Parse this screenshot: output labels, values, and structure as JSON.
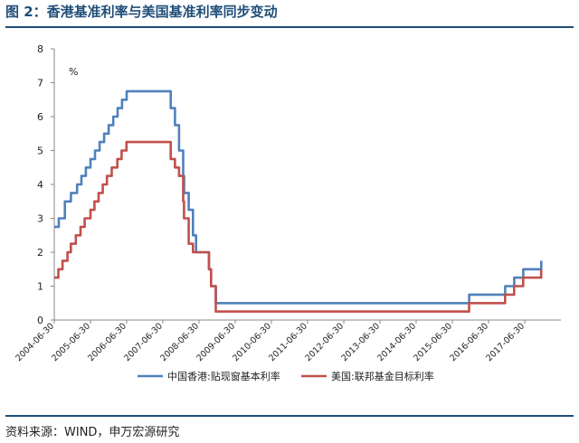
{
  "figure": {
    "title": "图 2：香港基准利率与美国基准利率同步变动",
    "source": "资料来源：WIND，申万宏源研究"
  },
  "chart_data": {
    "type": "line",
    "unit_label": "%",
    "ylim": [
      0,
      8
    ],
    "yticks": [
      0,
      1,
      2,
      3,
      4,
      5,
      6,
      7,
      8
    ],
    "xlim": [
      "2004-06-30",
      "2018-06-30"
    ],
    "xticks": [
      "2004-06-30",
      "2005-06-30",
      "2006-06-30",
      "2007-06-30",
      "2008-06-30",
      "2009-06-30",
      "2010-06-30",
      "2011-06-30",
      "2012-06-30",
      "2013-06-30",
      "2014-06-30",
      "2015-06-30",
      "2016-06-30",
      "2017-06-30"
    ],
    "grid": false,
    "legend_position": "bottom",
    "series": [
      {
        "name": "中国香港:贴现窗基本利率",
        "color": "#4f81bd",
        "points": [
          [
            "2004-06-30",
            2.75
          ],
          [
            "2004-08-15",
            3.0
          ],
          [
            "2004-10-15",
            3.5
          ],
          [
            "2004-12-15",
            3.75
          ],
          [
            "2005-02-15",
            4.0
          ],
          [
            "2005-03-31",
            4.25
          ],
          [
            "2005-05-15",
            4.5
          ],
          [
            "2005-06-30",
            4.75
          ],
          [
            "2005-08-15",
            5.0
          ],
          [
            "2005-09-30",
            5.25
          ],
          [
            "2005-11-15",
            5.5
          ],
          [
            "2005-12-31",
            5.75
          ],
          [
            "2006-02-15",
            6.0
          ],
          [
            "2006-03-31",
            6.25
          ],
          [
            "2006-05-15",
            6.5
          ],
          [
            "2006-06-30",
            6.75
          ],
          [
            "2007-09-18",
            6.25
          ],
          [
            "2007-10-31",
            5.75
          ],
          [
            "2007-12-11",
            5.0
          ],
          [
            "2008-01-22",
            4.25
          ],
          [
            "2008-01-31",
            3.75
          ],
          [
            "2008-03-18",
            3.25
          ],
          [
            "2008-04-30",
            2.5
          ],
          [
            "2008-05-31",
            2.0
          ],
          [
            "2008-10-08",
            1.5
          ],
          [
            "2008-10-29",
            1.0
          ],
          [
            "2008-12-17",
            0.5
          ],
          [
            "2015-12-17",
            0.75
          ],
          [
            "2016-12-15",
            1.0
          ],
          [
            "2017-03-16",
            1.25
          ],
          [
            "2017-06-15",
            1.5
          ],
          [
            "2017-12-14",
            1.75
          ]
        ]
      },
      {
        "name": "美国:联邦基金目标利率",
        "color": "#c0504d",
        "points": [
          [
            "2004-06-30",
            1.25
          ],
          [
            "2004-08-10",
            1.5
          ],
          [
            "2004-09-21",
            1.75
          ],
          [
            "2004-11-10",
            2.0
          ],
          [
            "2004-12-14",
            2.25
          ],
          [
            "2005-02-02",
            2.5
          ],
          [
            "2005-03-22",
            2.75
          ],
          [
            "2005-05-03",
            3.0
          ],
          [
            "2005-06-30",
            3.25
          ],
          [
            "2005-08-09",
            3.5
          ],
          [
            "2005-09-20",
            3.75
          ],
          [
            "2005-11-01",
            4.0
          ],
          [
            "2005-12-13",
            4.25
          ],
          [
            "2006-01-31",
            4.5
          ],
          [
            "2006-03-28",
            4.75
          ],
          [
            "2006-05-10",
            5.0
          ],
          [
            "2006-06-29",
            5.25
          ],
          [
            "2007-09-18",
            4.75
          ],
          [
            "2007-10-31",
            4.5
          ],
          [
            "2007-12-11",
            4.25
          ],
          [
            "2008-01-22",
            3.5
          ],
          [
            "2008-01-30",
            3.0
          ],
          [
            "2008-03-18",
            2.25
          ],
          [
            "2008-04-30",
            2.0
          ],
          [
            "2008-10-08",
            1.5
          ],
          [
            "2008-10-29",
            1.0
          ],
          [
            "2008-12-16",
            0.25
          ],
          [
            "2015-12-16",
            0.5
          ],
          [
            "2016-12-14",
            0.75
          ],
          [
            "2017-03-15",
            1.0
          ],
          [
            "2017-06-14",
            1.25
          ],
          [
            "2017-12-13",
            1.5
          ]
        ]
      }
    ]
  }
}
